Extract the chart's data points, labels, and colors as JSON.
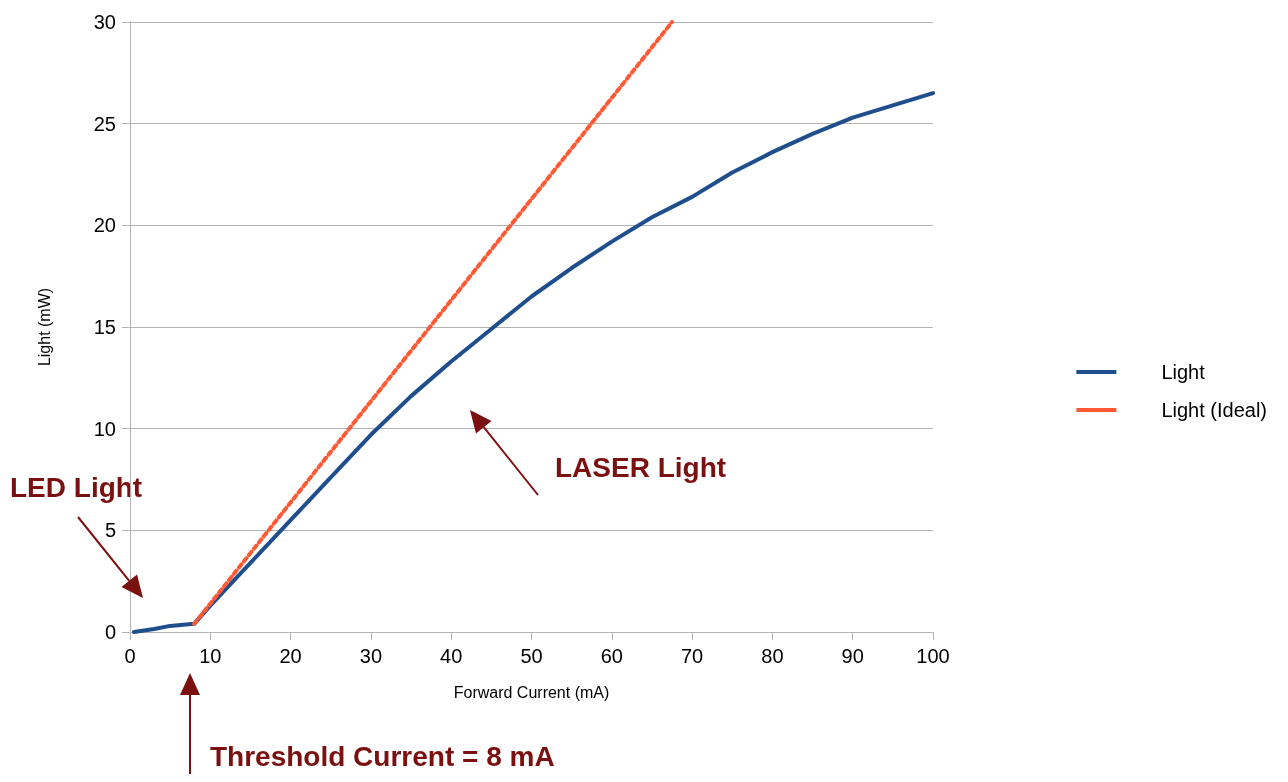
{
  "chart_data": {
    "type": "line",
    "xlabel": "Forward Current (mA)",
    "ylabel": "Light (mW)",
    "xlim": [
      0,
      100
    ],
    "xticks": [
      0,
      10,
      20,
      30,
      40,
      50,
      60,
      70,
      80,
      90,
      100
    ],
    "ylim": [
      0,
      30
    ],
    "yticks": [
      0,
      5,
      10,
      15,
      20,
      25,
      30
    ],
    "grid": "y",
    "legend": "right",
    "marker": "none",
    "series": [
      {
        "name": "Light",
        "color": "#1f4e8c",
        "line_style": "solid",
        "x": [
          0.5,
          3,
          5,
          8,
          10,
          15,
          20,
          25,
          30,
          35,
          40,
          45,
          50,
          55,
          60,
          65,
          70,
          75,
          80,
          85,
          90,
          95,
          100
        ],
        "values": [
          0,
          0.15,
          0.3,
          0.4,
          1.3,
          3.4,
          5.5,
          7.6,
          9.7,
          11.6,
          13.3,
          14.9,
          16.5,
          17.9,
          19.2,
          20.4,
          21.4,
          22.6,
          23.6,
          24.5,
          25.3,
          25.9,
          26.5
        ]
      },
      {
        "name": "Light (Ideal)",
        "color": "#ff5a36",
        "line_style": "dotted",
        "x": [
          8,
          67.5
        ],
        "values": [
          0.4,
          30
        ]
      }
    ],
    "annotations": [
      "LED Light",
      "LASER Light",
      "Threshold Current = 8 mA"
    ]
  }
}
